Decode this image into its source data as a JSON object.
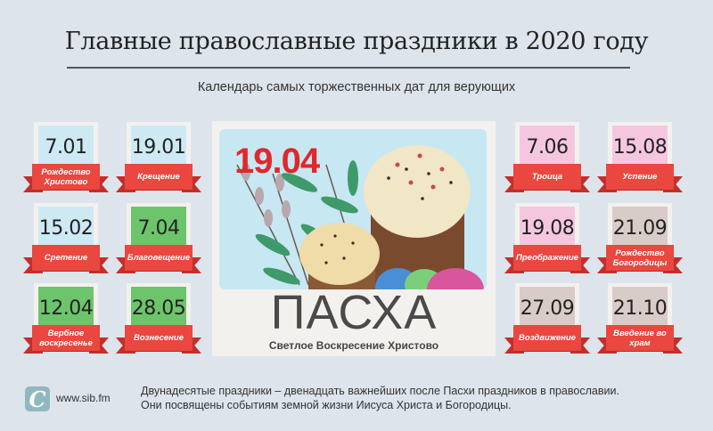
{
  "header": {
    "title": "Главные православные праздники в 2020 году",
    "subtitle": "Календарь самых торжественных дат для верующих"
  },
  "colors": {
    "background": "#dde4ec",
    "ribbon": "#e9473f",
    "winter": "#cde9f4",
    "spring": "#6cc56a",
    "summer": "#f5c7df",
    "autumn": "#d9ccc8",
    "easter_date": "#e0282a"
  },
  "holidays": [
    {
      "date": "7.01",
      "name": "Рождество Христово",
      "color": "#cde9f4"
    },
    {
      "date": "19.01",
      "name": "Крещение",
      "color": "#cde9f4"
    },
    {
      "date": "15.02",
      "name": "Сретение",
      "color": "#cde9f4"
    },
    {
      "date": "7.04",
      "name": "Благовещение",
      "color": "#6cc56a"
    },
    {
      "date": "12.04",
      "name": "Вербное воскресенье",
      "color": "#6cc56a"
    },
    {
      "date": "28.05",
      "name": "Вознесение",
      "color": "#6cc56a"
    },
    {
      "date": "7.06",
      "name": "Троица",
      "color": "#f5c7df"
    },
    {
      "date": "15.08",
      "name": "Успение",
      "color": "#f5c7df"
    },
    {
      "date": "19.08",
      "name": "Преображение",
      "color": "#f5c7df"
    },
    {
      "date": "21.09",
      "name": "Рождество Богородицы",
      "color": "#d9ccc8"
    },
    {
      "date": "27.09",
      "name": "Воздвижение",
      "color": "#d9ccc8"
    },
    {
      "date": "21.10",
      "name": "Введение во храм",
      "color": "#d9ccc8"
    }
  ],
  "easter": {
    "date": "19.04",
    "title": "ПАСХА",
    "subtitle": "Светлое Воскресение Христово",
    "illustration": "kulich-eggs-willow"
  },
  "footer": {
    "logo_letter": "С",
    "site": "www.sib.fm",
    "note_line1": "Двунадесятые праздники – двенадцать важнейших после Пасхи праздников в православии.",
    "note_line2": "Они посвящены событиям земной жизни Иисуса Христа и Богородицы."
  }
}
